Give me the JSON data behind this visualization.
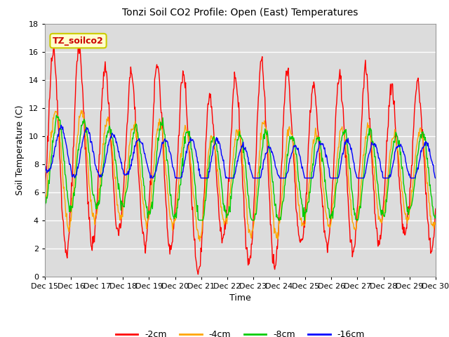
{
  "title": "Tonzi Soil CO2 Profile: Open (East) Temperatures",
  "xlabel": "Time",
  "ylabel": "Soil Temperature (C)",
  "ylim": [
    0,
    18
  ],
  "yticks": [
    0,
    2,
    4,
    6,
    8,
    10,
    12,
    14,
    16,
    18
  ],
  "legend_label": "TZ_soilco2",
  "series_labels": [
    "-2cm",
    "-4cm",
    "-8cm",
    "-16cm"
  ],
  "series_colors": [
    "#ff0000",
    "#ffa500",
    "#00cc00",
    "#0000ff"
  ],
  "fig_bg_color": "#ffffff",
  "plot_bg_color": "#dcdcdc",
  "grid_color": "#ffffff",
  "xtick_labels": [
    "Dec 15",
    "Dec 16",
    "Dec 17",
    "Dec 18",
    "Dec 19",
    "Dec 20",
    "Dec 21",
    "Dec 22",
    "Dec 23",
    "Dec 24",
    "Dec 25",
    "Dec 26",
    "Dec 27",
    "Dec 28",
    "Dec 29",
    "Dec 30"
  ],
  "legend_box_color": "#ffffcc",
  "legend_box_edge": "#cccc00"
}
